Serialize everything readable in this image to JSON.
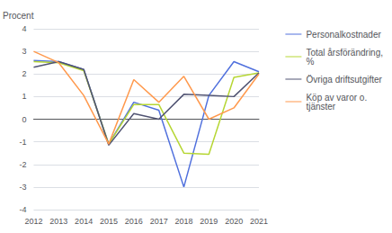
{
  "chart_data": {
    "type": "line",
    "ylabel": "Procent",
    "categories": [
      "2012",
      "2013",
      "2014",
      "2015",
      "2016",
      "2017",
      "2018",
      "2019",
      "2020",
      "2021"
    ],
    "series": [
      {
        "name": "Personalkostnader",
        "values": [
          2.6,
          2.55,
          2.2,
          -1.1,
          0.75,
          0.4,
          -3.0,
          1.05,
          2.55,
          2.1
        ]
      },
      {
        "name": "Total årsförändring,\n%",
        "values": [
          2.55,
          2.5,
          2.15,
          -1.1,
          0.65,
          0.65,
          -1.5,
          -1.55,
          1.85,
          2.05
        ]
      },
      {
        "name": "Övriga driftsutgifter",
        "values": [
          2.3,
          2.55,
          2.2,
          -1.15,
          0.25,
          0.0,
          1.1,
          1.05,
          1.0,
          2.05
        ]
      },
      {
        "name": "Köp av varor o.\ntjänster",
        "values": [
          3.0,
          2.5,
          1.05,
          -1.1,
          1.75,
          0.75,
          1.9,
          0.0,
          0.5,
          2.0
        ]
      }
    ],
    "ylim": [
      -4,
      4
    ],
    "yticks": [
      -4,
      -3,
      -2,
      -1,
      0,
      1,
      2,
      3,
      4
    ],
    "grid": true,
    "legend": "right"
  }
}
